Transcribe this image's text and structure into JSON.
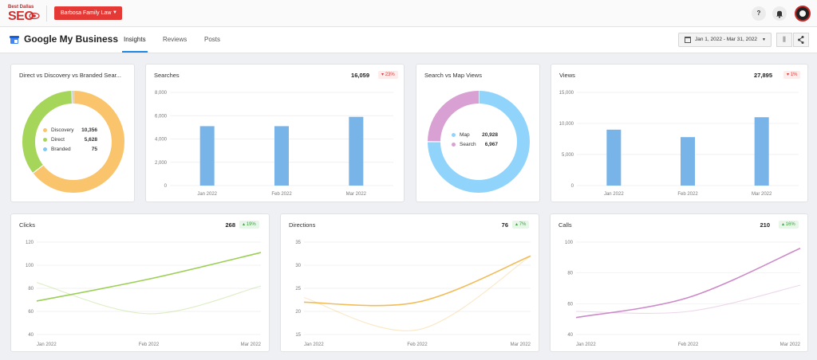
{
  "topbar": {
    "logo_small": "Best Dallas",
    "logo_main": "SEO",
    "client_selector": "Barbosa Family Law",
    "help_icon": "?",
    "bell_icon": "bell-icon"
  },
  "header": {
    "title": "Google My Business",
    "tabs": [
      "Insights",
      "Reviews",
      "Posts"
    ],
    "active_tab": "Insights",
    "date_range": "Jan 1, 2022 - Mar 31, 2022"
  },
  "colors": {
    "discovery": "#f9c46b",
    "direct": "#a5d65a",
    "branded": "#81c8f2",
    "map": "#90d4fb",
    "search": "#d8a0d3",
    "bar": "#78b4e8",
    "clicks": "#9ccf55",
    "directions": "#f2bc58",
    "calls": "#cc8ac9"
  },
  "cards": {
    "direct_discovery": {
      "title": "Direct vs Discovery vs Branded Sear...",
      "legend": [
        {
          "label": "Discovery",
          "value": "10,356"
        },
        {
          "label": "Direct",
          "value": "5,628"
        },
        {
          "label": "Branded",
          "value": "75"
        }
      ]
    },
    "searches": {
      "title": "Searches",
      "total": "16,059",
      "change": "23%",
      "direction": "down"
    },
    "search_map": {
      "title": "Search vs Map Views",
      "legend": [
        {
          "label": "Map",
          "value": "20,928"
        },
        {
          "label": "Search",
          "value": "6,967"
        }
      ]
    },
    "views": {
      "title": "Views",
      "total": "27,895",
      "change": "1%",
      "direction": "down"
    },
    "clicks": {
      "title": "Clicks",
      "total": "268",
      "change": "19%",
      "direction": "up"
    },
    "directions": {
      "title": "Directions",
      "total": "76",
      "change": "7%",
      "direction": "up"
    },
    "calls": {
      "title": "Calls",
      "total": "210",
      "change": "16%",
      "direction": "up"
    }
  },
  "chart_data": [
    {
      "id": "direct_discovery",
      "type": "pie",
      "title": "Direct vs Discovery vs Branded Sear...",
      "categories": [
        "Discovery",
        "Direct",
        "Branded"
      ],
      "values": [
        10356,
        5628,
        75
      ]
    },
    {
      "id": "searches",
      "type": "bar",
      "title": "Searches",
      "categories": [
        "Jan 2022",
        "Feb 2022",
        "Mar 2022"
      ],
      "values": [
        5100,
        5100,
        5900
      ],
      "yticks": [
        "8,000",
        "6,000",
        "4,000",
        "2,000",
        "0"
      ],
      "ylim": [
        0,
        8000
      ]
    },
    {
      "id": "search_map",
      "type": "pie",
      "title": "Search vs Map Views",
      "categories": [
        "Map",
        "Search"
      ],
      "values": [
        20928,
        6967
      ]
    },
    {
      "id": "views",
      "type": "bar",
      "title": "Views",
      "categories": [
        "Jan 2022",
        "Feb 2022",
        "Mar 2022"
      ],
      "values": [
        9000,
        7800,
        11000
      ],
      "yticks": [
        "15,000",
        "10,000",
        "5,000",
        "0"
      ],
      "ylim": [
        0,
        15000
      ]
    },
    {
      "id": "clicks",
      "type": "line",
      "title": "Clicks",
      "categories": [
        "Jan 2022",
        "Feb 2022",
        "Mar 2022"
      ],
      "yticks": [
        "120",
        "100",
        "80",
        "60",
        "40"
      ],
      "ylim": [
        40,
        120
      ],
      "series": [
        {
          "name": "current",
          "values": [
            69,
            88,
            111
          ]
        },
        {
          "name": "previous",
          "values": [
            85,
            58,
            82
          ]
        }
      ]
    },
    {
      "id": "directions",
      "type": "line",
      "title": "Directions",
      "categories": [
        "Jan 2022",
        "Feb 2022",
        "Mar 2022"
      ],
      "yticks": [
        "35",
        "30",
        "25",
        "20",
        "15"
      ],
      "ylim": [
        15,
        35
      ],
      "series": [
        {
          "name": "current",
          "values": [
            22,
            22,
            32
          ]
        },
        {
          "name": "previous",
          "values": [
            23,
            16,
            32
          ]
        }
      ]
    },
    {
      "id": "calls",
      "type": "line",
      "title": "Calls",
      "categories": [
        "Jan 2022",
        "Feb 2022",
        "Mar 2022"
      ],
      "yticks": [
        "100",
        "80",
        "60",
        "40"
      ],
      "ylim": [
        40,
        100
      ],
      "series": [
        {
          "name": "current",
          "values": [
            51,
            64,
            96
          ]
        },
        {
          "name": "previous",
          "values": [
            55,
            55,
            72
          ]
        }
      ]
    }
  ]
}
